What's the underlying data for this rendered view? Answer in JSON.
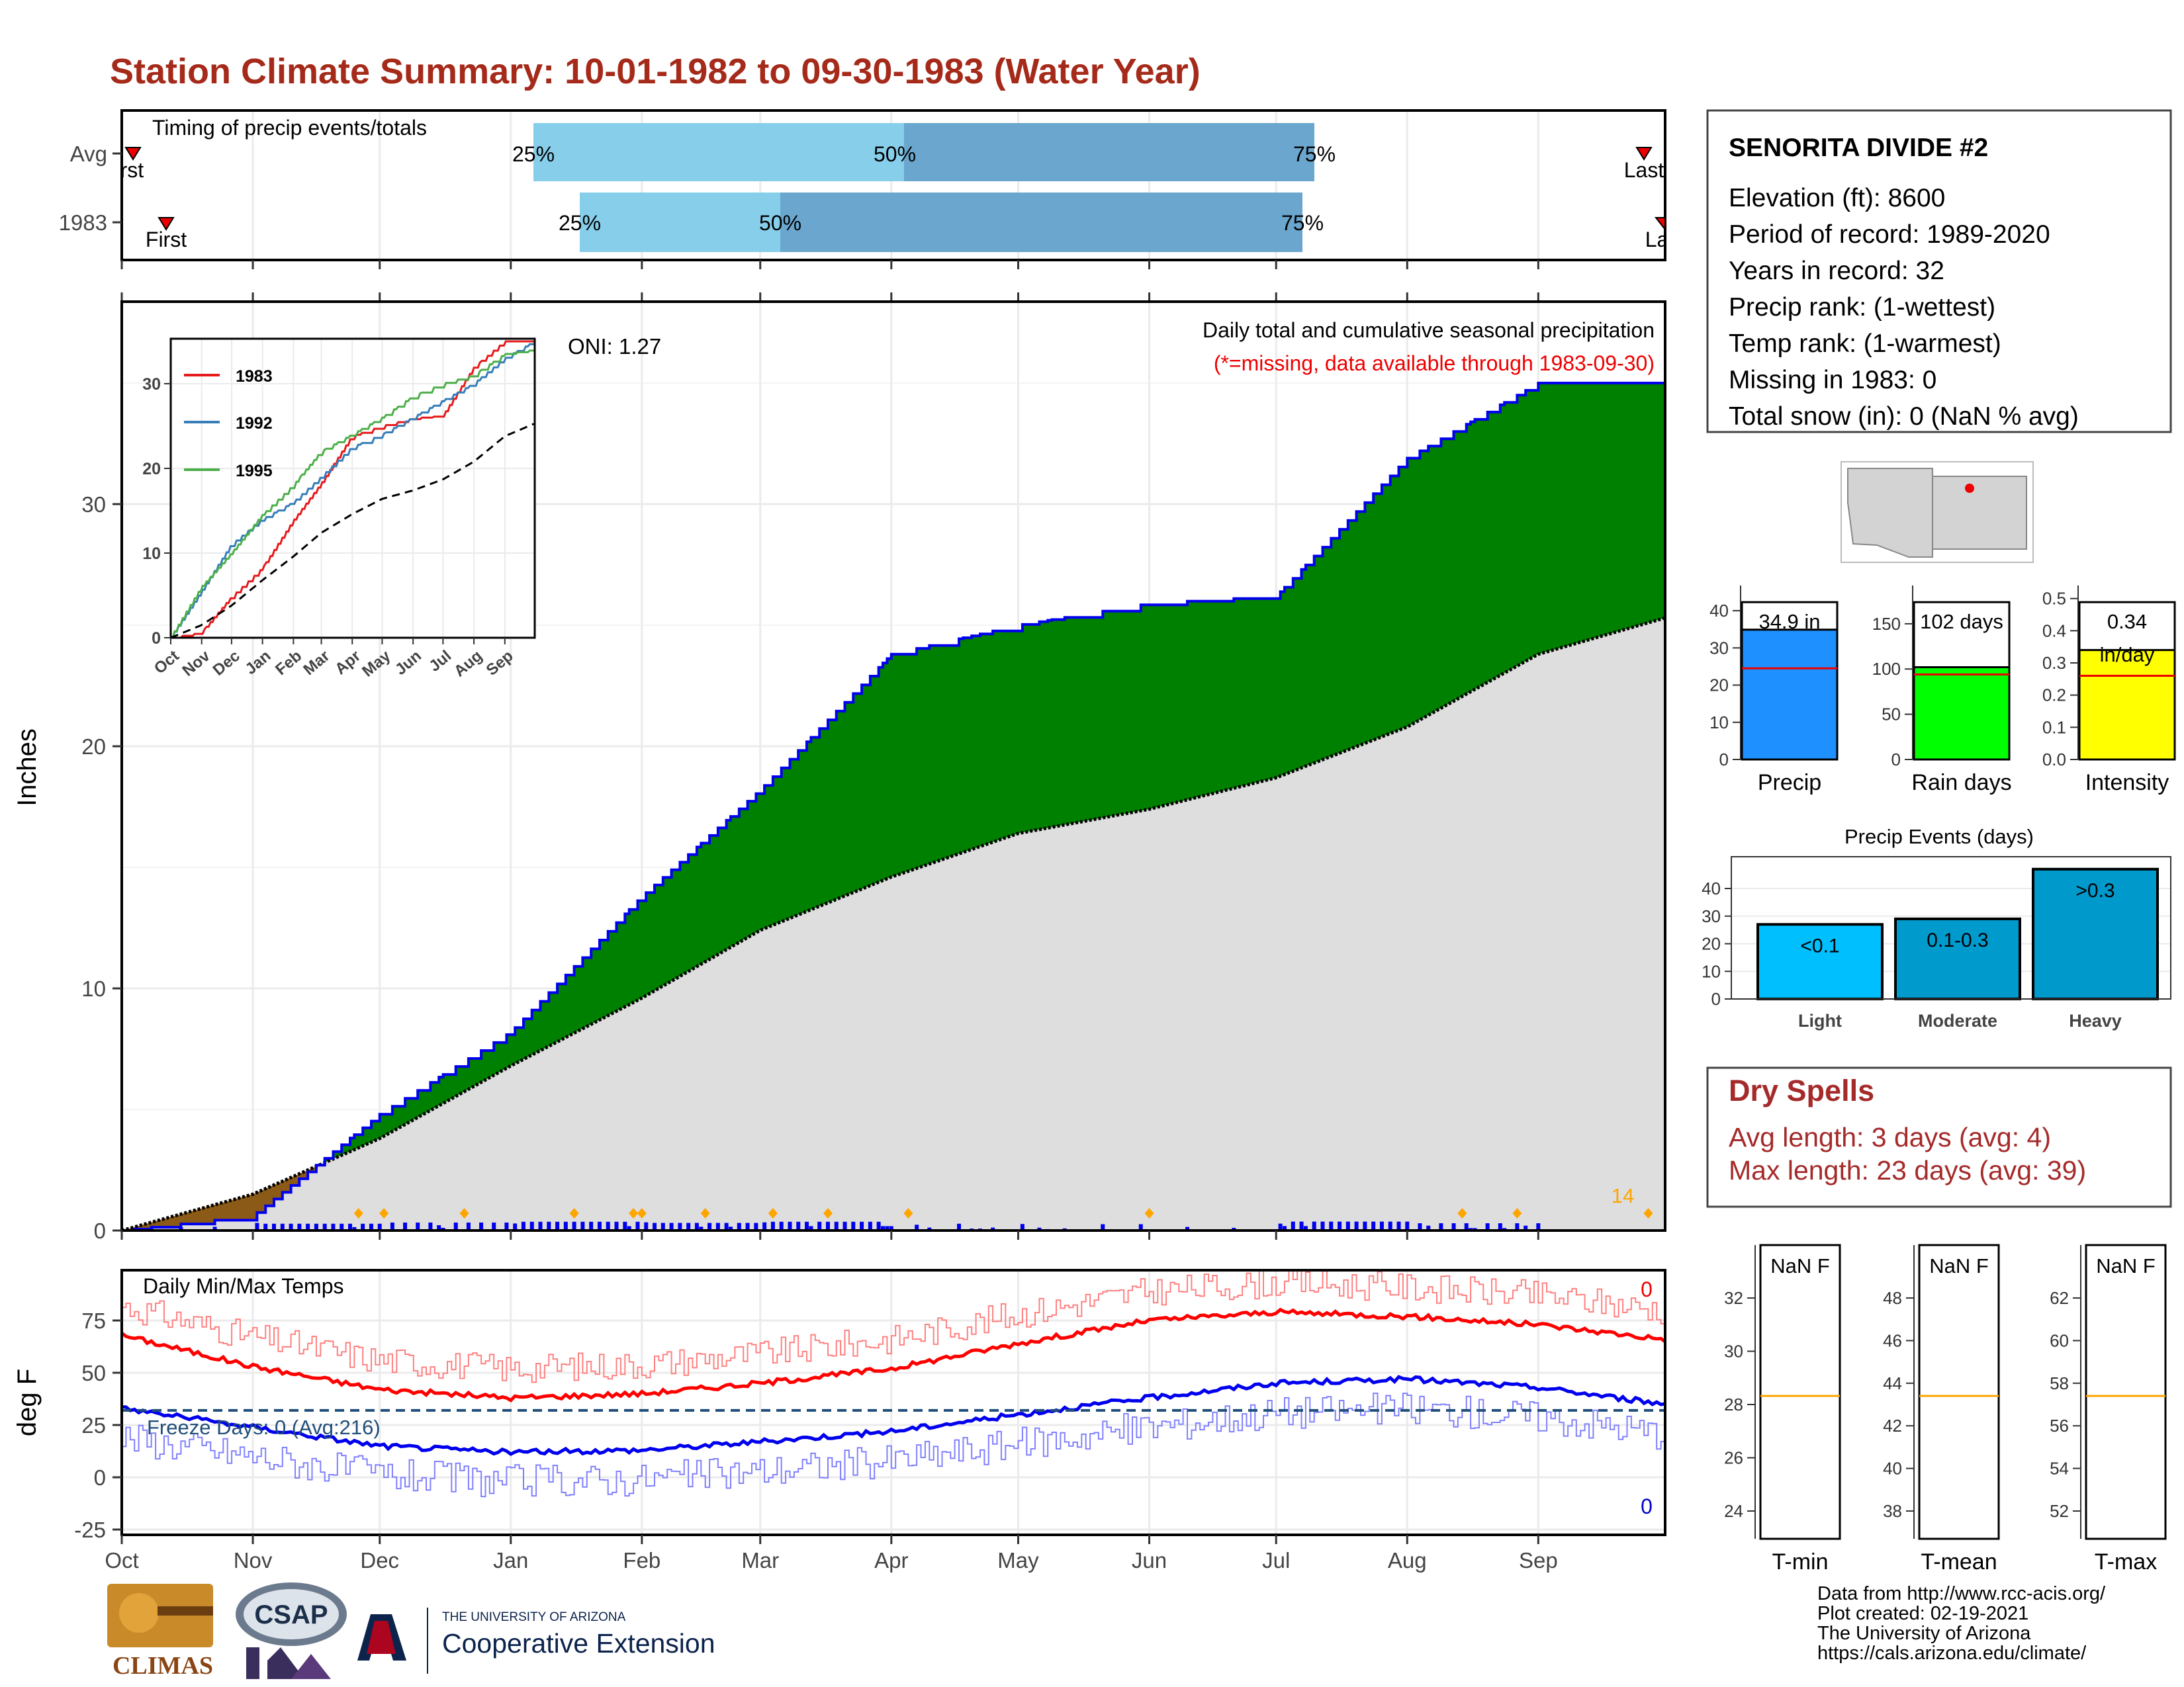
{
  "page": {
    "title": "Station Climate Summary: 10-01-1982 to 09-30-1983 (Water Year)"
  },
  "timing_panel": {
    "title": "Timing of precip events/totals",
    "rows": [
      {
        "label": "Avg",
        "q25": "25%",
        "q50": "50%",
        "q75": "75%",
        "first": "First",
        "last": "Last"
      },
      {
        "label": "1983",
        "q25": "25%",
        "q50": "50%",
        "q75": "75%",
        "first": "First",
        "last": "Last"
      }
    ]
  },
  "precip_panel": {
    "ylabel": "Inches",
    "note1": "Daily total and cumulative seasonal precipitation",
    "note2": "(*=missing, data available through 1983-09-30)",
    "oni": "ONI: 1.27",
    "extreme_label": "14",
    "yticks": [
      "0",
      "10",
      "20",
      "30"
    ]
  },
  "inset": {
    "legend": [
      "1983",
      "1992",
      "1995"
    ],
    "yticks": [
      "0",
      "10",
      "20",
      "30"
    ],
    "xticks": [
      "Oct",
      "Nov",
      "Dec",
      "Jan",
      "Feb",
      "Mar",
      "Apr",
      "May",
      "Jun",
      "Jul",
      "Aug",
      "Sep"
    ]
  },
  "temp_panel": {
    "ylabel": "deg F",
    "title": "Daily Min/Max Temps",
    "freeze": "Freeze Days: 0 (Avg:216)",
    "max_count": "0",
    "min_count": "0",
    "yticks": [
      "75",
      "50",
      "25",
      "0",
      "-25"
    ]
  },
  "months": [
    "Oct",
    "Nov",
    "Dec",
    "Jan",
    "Feb",
    "Mar",
    "Apr",
    "May",
    "Jun",
    "Jul",
    "Aug",
    "Sep"
  ],
  "station": {
    "name": "SENORITA DIVIDE #2",
    "lines": [
      "Elevation (ft): 8600",
      "Period of record: 1989-2020",
      "Years in record: 32",
      "Precip rank:  (1-wettest)",
      "Temp rank:  (1-warmest)",
      "Missing in 1983: 0",
      "Total snow (in): 0 (NaN % avg)"
    ]
  },
  "summary_bars": [
    {
      "label": "Precip",
      "value_text": "34.9 in",
      "value": 34.9,
      "avg": 24.5,
      "ymax": 45,
      "ticks": [
        "0",
        "10",
        "20",
        "30",
        "40"
      ],
      "color": "#1e90ff"
    },
    {
      "label": "Rain days",
      "value_text": "102 days",
      "value": 102,
      "avg": 94,
      "ymax": 185,
      "ticks": [
        "0",
        "50",
        "100",
        "150"
      ],
      "color": "#00ff00"
    },
    {
      "label": "Intensity",
      "value_text": "0.34",
      "value_text2": "in/day",
      "value": 0.34,
      "avg": 0.26,
      "ymax": 0.52,
      "ticks": [
        "0.0",
        "0.1",
        "0.2",
        "0.3",
        "0.4",
        "0.5"
      ],
      "color": "#ffff00"
    }
  ],
  "events": {
    "title": "Precip Events (days)",
    "ticks": [
      "0",
      "10",
      "20",
      "30",
      "40"
    ],
    "bars": [
      {
        "cat": "Light",
        "label": "<0.1",
        "value": 27,
        "color": "#00bfff"
      },
      {
        "cat": "Moderate",
        "label": "0.1-0.3",
        "value": 29,
        "color": "#009acd"
      },
      {
        "cat": "Heavy",
        "label": ">0.3",
        "value": 47,
        "color": "#0099cc"
      }
    ]
  },
  "dry_spells": {
    "title": "Dry Spells",
    "avg": "Avg length: 3 days (avg: 4)",
    "max": "Max length: 23 days (avg: 39)"
  },
  "temp_boxes": [
    {
      "label": "T-min",
      "value": "NaN F",
      "ticks": [
        "24",
        "26",
        "28",
        "30",
        "32"
      ]
    },
    {
      "label": "T-mean",
      "value": "NaN F",
      "ticks": [
        "38",
        "40",
        "42",
        "44",
        "46",
        "48"
      ]
    },
    {
      "label": "T-max",
      "value": "NaN F",
      "ticks": [
        "52",
        "54",
        "56",
        "58",
        "60",
        "62"
      ]
    }
  ],
  "credits": [
    "Data from http://www.rcc-acis.org/",
    "Plot created: 02-19-2021",
    "The University of Arizona",
    "https://cals.arizona.edu/climate/"
  ],
  "logos": {
    "climas": "CLIMAS",
    "csap": "CSAP",
    "ua_small": "THE UNIVERSITY OF ARIZONA",
    "ua_big": "Cooperative Extension"
  },
  "colors": {
    "title": "#a52a1a",
    "green_fill": "#008000",
    "brown_fill": "#8b5a16",
    "gray_fill": "#dedede",
    "obs_line": "#0000ee",
    "tmax": "#ff0000",
    "tmin": "#0000ee"
  },
  "chart_data": {
    "type": "area",
    "x": [
      "Oct",
      "Nov",
      "Dec",
      "Jan",
      "Feb",
      "Mar",
      "Apr",
      "May",
      "Jun",
      "Jul",
      "Aug",
      "Sep",
      "Sep 30"
    ],
    "series": [
      {
        "name": "1983",
        "values": [
          0.0,
          0.6,
          4.8,
          8.2,
          13.8,
          18.2,
          23.8,
          25.0,
          25.9,
          26.2,
          31.9,
          35.0,
          35.0
        ]
      },
      {
        "name": "Avg",
        "values": [
          0.0,
          1.5,
          3.8,
          6.8,
          9.6,
          12.4,
          14.6,
          16.4,
          17.4,
          18.7,
          20.8,
          23.8,
          25.3
        ]
      }
    ],
    "ylabel": "Inches",
    "ylim": [
      0,
      38
    ],
    "inset": {
      "type": "line",
      "x": [
        "Oct",
        "Nov",
        "Dec",
        "Jan",
        "Feb",
        "Mar",
        "Apr",
        "May",
        "Jun",
        "Jul",
        "Aug",
        "Sep",
        "Sep 30"
      ],
      "series": [
        {
          "name": "1983",
          "values": [
            0.0,
            0.6,
            4.8,
            8.2,
            13.8,
            18.2,
            23.8,
            25.0,
            25.9,
            26.2,
            31.9,
            35.0,
            35.0
          ]
        },
        {
          "name": "1992",
          "values": [
            0.0,
            5.5,
            11.0,
            14.0,
            16.0,
            19.0,
            22.5,
            24.0,
            26.0,
            28.0,
            30.0,
            33.0,
            35.0
          ]
        },
        {
          "name": "1995",
          "values": [
            0.0,
            6.0,
            10.0,
            14.5,
            18.0,
            22.0,
            24.0,
            26.0,
            28.5,
            30.0,
            31.0,
            33.5,
            34.0
          ]
        },
        {
          "name": "Avg",
          "values": [
            0.0,
            1.5,
            3.8,
            6.8,
            9.6,
            12.4,
            14.6,
            16.4,
            17.4,
            18.7,
            20.8,
            23.8,
            25.3
          ]
        }
      ],
      "ylim": [
        0,
        36
      ]
    },
    "temps": {
      "type": "line",
      "x": [
        "Oct",
        "Nov",
        "Dec",
        "Jan",
        "Feb",
        "Mar",
        "Apr",
        "May",
        "Jun",
        "Jul",
        "Aug",
        "Sep",
        "Sep 30"
      ],
      "avg_max": [
        68,
        53,
        42,
        38,
        40,
        45,
        52,
        64,
        75,
        79,
        77,
        73,
        66
      ],
      "avg_min": [
        33,
        24,
        15,
        12,
        13,
        17,
        22,
        30,
        38,
        45,
        47,
        43,
        35
      ],
      "freeze_line": 32,
      "ylim": [
        -30,
        95
      ]
    }
  }
}
